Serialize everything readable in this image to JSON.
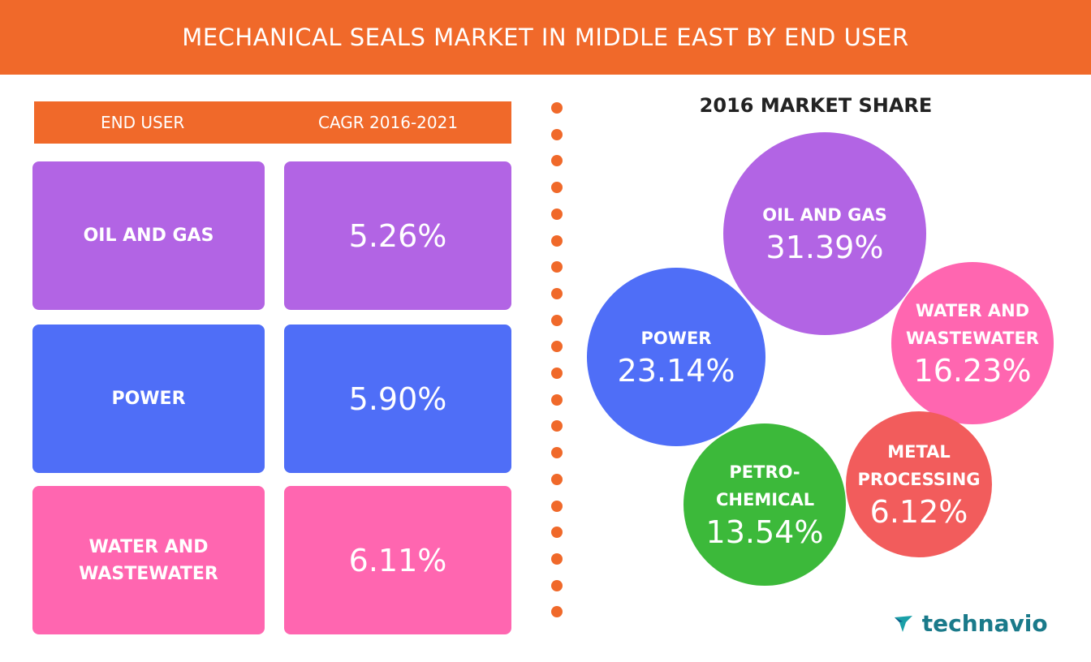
{
  "header": {
    "title": "MECHANICAL SEALS MARKET IN MIDDLE EAST BY END USER"
  },
  "table": {
    "headers": [
      "END USER",
      "CAGR 2016-2021"
    ],
    "rows": [
      [
        "OIL AND GAS",
        "5.26%"
      ],
      [
        "POWER",
        "5.90%"
      ],
      [
        "WATER AND WASTEWATER",
        "6.11%"
      ]
    ]
  },
  "market_share": {
    "title": "2016 MARKET SHARE",
    "bubbles": [
      {
        "label": "OIL AND GAS",
        "value": "31.39%"
      },
      {
        "label": "POWER",
        "value": "23.14%"
      },
      {
        "label": "WATER AND WASTEWATER",
        "value": "16.23%"
      },
      {
        "label": "PETRO-CHEMICAL",
        "value": "13.54%"
      },
      {
        "label": "METAL PROCESSING",
        "value": "6.12%"
      }
    ]
  },
  "brand": {
    "logo": "technavio"
  }
}
